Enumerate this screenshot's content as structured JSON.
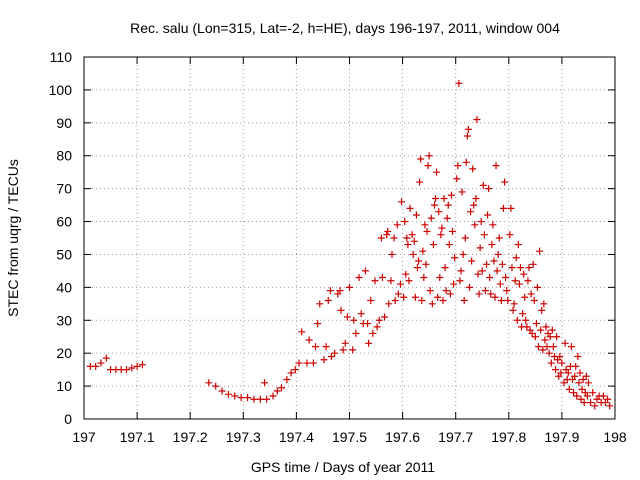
{
  "chart_data": {
    "type": "scatter",
    "title": "Rec. salu (Lon=315, Lat=-2, h=HE), days 196-197, 2011, window 004",
    "xlabel": "GPS time / Days of year 2011",
    "ylabel": "STEC from uqrg / TECUs",
    "xlim": [
      197,
      198
    ],
    "ylim": [
      0,
      110
    ],
    "xticks": [
      "197",
      "197.1",
      "197.2",
      "197.3",
      "197.4",
      "197.5",
      "197.6",
      "197.7",
      "197.8",
      "197.9",
      "198"
    ],
    "yticks": [
      "0",
      "10",
      "20",
      "30",
      "40",
      "50",
      "60",
      "70",
      "80",
      "90",
      "100",
      "110"
    ],
    "xtick_values": [
      197,
      197.1,
      197.2,
      197.3,
      197.4,
      197.5,
      197.6,
      197.7,
      197.8,
      197.9,
      198
    ],
    "ytick_values": [
      0,
      10,
      20,
      30,
      40,
      50,
      60,
      70,
      80,
      90,
      100,
      110
    ],
    "grid": true,
    "marker": "plus",
    "color": "#cc0000",
    "points": [
      [
        197.012,
        16
      ],
      [
        197.022,
        16
      ],
      [
        197.032,
        17
      ],
      [
        197.042,
        18.5
      ],
      [
        197.05,
        15
      ],
      [
        197.06,
        15
      ],
      [
        197.07,
        15
      ],
      [
        197.08,
        15
      ],
      [
        197.09,
        15.5
      ],
      [
        197.1,
        16
      ],
      [
        197.11,
        16.5
      ],
      [
        197.235,
        11
      ],
      [
        197.248,
        10
      ],
      [
        197.26,
        8.5
      ],
      [
        197.272,
        7.5
      ],
      [
        197.284,
        7
      ],
      [
        197.296,
        6.5
      ],
      [
        197.308,
        6.5
      ],
      [
        197.32,
        6
      ],
      [
        197.332,
        6
      ],
      [
        197.34,
        11
      ],
      [
        197.344,
        6
      ],
      [
        197.356,
        7
      ],
      [
        197.364,
        8.5
      ],
      [
        197.372,
        9.5
      ],
      [
        197.382,
        12
      ],
      [
        197.39,
        14
      ],
      [
        197.398,
        15
      ],
      [
        197.405,
        17
      ],
      [
        197.41,
        26.5
      ],
      [
        197.42,
        17
      ],
      [
        197.424,
        24
      ],
      [
        197.432,
        17
      ],
      [
        197.436,
        22
      ],
      [
        197.44,
        29
      ],
      [
        197.444,
        35
      ],
      [
        197.452,
        18
      ],
      [
        197.456,
        22
      ],
      [
        197.46,
        36
      ],
      [
        197.464,
        39
      ],
      [
        197.466,
        19
      ],
      [
        197.472,
        20
      ],
      [
        197.478,
        38
      ],
      [
        197.482,
        39
      ],
      [
        197.484,
        33
      ],
      [
        197.488,
        21
      ],
      [
        197.492,
        23
      ],
      [
        197.496,
        31
      ],
      [
        197.5,
        40
      ],
      [
        197.506,
        21
      ],
      [
        197.508,
        30
      ],
      [
        197.512,
        26
      ],
      [
        197.518,
        43
      ],
      [
        197.522,
        32
      ],
      [
        197.526,
        29
      ],
      [
        197.53,
        45
      ],
      [
        197.534,
        29
      ],
      [
        197.536,
        23
      ],
      [
        197.54,
        36
      ],
      [
        197.544,
        26
      ],
      [
        197.548,
        42
      ],
      [
        197.552,
        28
      ],
      [
        197.556,
        30
      ],
      [
        197.56,
        55
      ],
      [
        197.562,
        43
      ],
      [
        197.566,
        31
      ],
      [
        197.57,
        56
      ],
      [
        197.572,
        57
      ],
      [
        197.574,
        35
      ],
      [
        197.578,
        42
      ],
      [
        197.58,
        50
      ],
      [
        197.584,
        55
      ],
      [
        197.586,
        36
      ],
      [
        197.59,
        59
      ],
      [
        197.592,
        38
      ],
      [
        197.596,
        41
      ],
      [
        197.598,
        66
      ],
      [
        197.602,
        37
      ],
      [
        197.604,
        60
      ],
      [
        197.606,
        44
      ],
      [
        197.608,
        55
      ],
      [
        197.61,
        53
      ],
      [
        197.612,
        42
      ],
      [
        197.614,
        64
      ],
      [
        197.618,
        56
      ],
      [
        197.62,
        50
      ],
      [
        197.622,
        54
      ],
      [
        197.624,
        37
      ],
      [
        197.626,
        62
      ],
      [
        197.628,
        46
      ],
      [
        197.63,
        48
      ],
      [
        197.632,
        72
      ],
      [
        197.634,
        79
      ],
      [
        197.636,
        36
      ],
      [
        197.638,
        51
      ],
      [
        197.64,
        43
      ],
      [
        197.642,
        59
      ],
      [
        197.644,
        47
      ],
      [
        197.646,
        57
      ],
      [
        197.648,
        77
      ],
      [
        197.65,
        80
      ],
      [
        197.652,
        39
      ],
      [
        197.654,
        61
      ],
      [
        197.656,
        35
      ],
      [
        197.658,
        53
      ],
      [
        197.66,
        65
      ],
      [
        197.662,
        67
      ],
      [
        197.664,
        75
      ],
      [
        197.666,
        37
      ],
      [
        197.668,
        63
      ],
      [
        197.67,
        43
      ],
      [
        197.672,
        56
      ],
      [
        197.674,
        58
      ],
      [
        197.676,
        36
      ],
      [
        197.678,
        67
      ],
      [
        197.68,
        46
      ],
      [
        197.682,
        39
      ],
      [
        197.684,
        61
      ],
      [
        197.686,
        65
      ],
      [
        197.688,
        53
      ],
      [
        197.69,
        38
      ],
      [
        197.692,
        68
      ],
      [
        197.694,
        57
      ],
      [
        197.696,
        41
      ],
      [
        197.698,
        49
      ],
      [
        197.702,
        73
      ],
      [
        197.704,
        77
      ],
      [
        197.706,
        102
      ],
      [
        197.708,
        42
      ],
      [
        197.71,
        45
      ],
      [
        197.712,
        69
      ],
      [
        197.714,
        50
      ],
      [
        197.716,
        36
      ],
      [
        197.718,
        55
      ],
      [
        197.72,
        78
      ],
      [
        197.722,
        86
      ],
      [
        197.724,
        88
      ],
      [
        197.726,
        40
      ],
      [
        197.728,
        63
      ],
      [
        197.73,
        48
      ],
      [
        197.732,
        76
      ],
      [
        197.734,
        65
      ],
      [
        197.736,
        59
      ],
      [
        197.738,
        67
      ],
      [
        197.74,
        91
      ],
      [
        197.742,
        44
      ],
      [
        197.744,
        38
      ],
      [
        197.746,
        52
      ],
      [
        197.748,
        60
      ],
      [
        197.75,
        45
      ],
      [
        197.752,
        71
      ],
      [
        197.754,
        56
      ],
      [
        197.756,
        39
      ],
      [
        197.758,
        47
      ],
      [
        197.76,
        62
      ],
      [
        197.762,
        70
      ],
      [
        197.764,
        43
      ],
      [
        197.766,
        38
      ],
      [
        197.768,
        53
      ],
      [
        197.77,
        59
      ],
      [
        197.772,
        48
      ],
      [
        197.774,
        37
      ],
      [
        197.776,
        77
      ],
      [
        197.778,
        45
      ],
      [
        197.78,
        50
      ],
      [
        197.782,
        55
      ],
      [
        197.784,
        41
      ],
      [
        197.786,
        36
      ],
      [
        197.788,
        47
      ],
      [
        197.79,
        64
      ],
      [
        197.792,
        72
      ],
      [
        197.794,
        43
      ],
      [
        197.796,
        39
      ],
      [
        197.798,
        36
      ],
      [
        197.802,
        56
      ],
      [
        197.804,
        64
      ],
      [
        197.806,
        46
      ],
      [
        197.808,
        33
      ],
      [
        197.81,
        35
      ],
      [
        197.812,
        42
      ],
      [
        197.814,
        49
      ],
      [
        197.816,
        30
      ],
      [
        197.818,
        53
      ],
      [
        197.82,
        41
      ],
      [
        197.822,
        46
      ],
      [
        197.824,
        28
      ],
      [
        197.826,
        32
      ],
      [
        197.828,
        44
      ],
      [
        197.83,
        37
      ],
      [
        197.832,
        30
      ],
      [
        197.834,
        28
      ],
      [
        197.836,
        42
      ],
      [
        197.838,
        46
      ],
      [
        197.84,
        27
      ],
      [
        197.842,
        38
      ],
      [
        197.844,
        26
      ],
      [
        197.846,
        47
      ],
      [
        197.848,
        36
      ],
      [
        197.85,
        25
      ],
      [
        197.852,
        29
      ],
      [
        197.854,
        40
      ],
      [
        197.856,
        22
      ],
      [
        197.858,
        51
      ],
      [
        197.86,
        27
      ],
      [
        197.862,
        33
      ],
      [
        197.864,
        21
      ],
      [
        197.866,
        35
      ],
      [
        197.868,
        24
      ],
      [
        197.87,
        28
      ],
      [
        197.872,
        22
      ],
      [
        197.874,
        26
      ],
      [
        197.876,
        20
      ],
      [
        197.878,
        25
      ],
      [
        197.88,
        17
      ],
      [
        197.882,
        27
      ],
      [
        197.884,
        22
      ],
      [
        197.886,
        19
      ],
      [
        197.888,
        15
      ],
      [
        197.89,
        25
      ],
      [
        197.892,
        18
      ],
      [
        197.894,
        13
      ],
      [
        197.896,
        19
      ],
      [
        197.898,
        14
      ],
      [
        197.9,
        17
      ],
      [
        197.904,
        11
      ],
      [
        197.906,
        23
      ],
      [
        197.908,
        15
      ],
      [
        197.91,
        12
      ],
      [
        197.912,
        14
      ],
      [
        197.914,
        9
      ],
      [
        197.916,
        16
      ],
      [
        197.918,
        22
      ],
      [
        197.92,
        12
      ],
      [
        197.922,
        8
      ],
      [
        197.924,
        13
      ],
      [
        197.926,
        16
      ],
      [
        197.928,
        7
      ],
      [
        197.93,
        19
      ],
      [
        197.932,
        11
      ],
      [
        197.934,
        14
      ],
      [
        197.936,
        6
      ],
      [
        197.938,
        9
      ],
      [
        197.94,
        12
      ],
      [
        197.942,
        5
      ],
      [
        197.944,
        8
      ],
      [
        197.946,
        13
      ],
      [
        197.948,
        7
      ],
      [
        197.95,
        11
      ],
      [
        197.954,
        5
      ],
      [
        197.958,
        8
      ],
      [
        197.962,
        4
      ],
      [
        197.966,
        6
      ],
      [
        197.97,
        7
      ],
      [
        197.974,
        5
      ],
      [
        197.978,
        7
      ],
      [
        197.982,
        5
      ],
      [
        197.986,
        6
      ],
      [
        197.99,
        4
      ]
    ]
  }
}
